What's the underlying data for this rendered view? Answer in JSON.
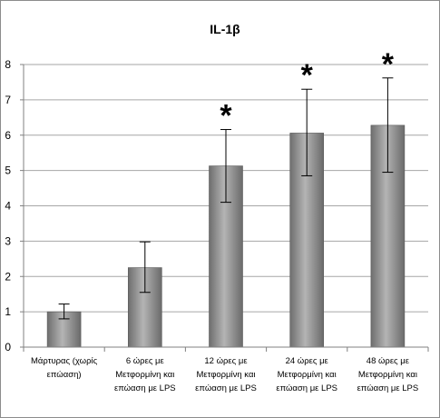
{
  "chart_data": {
    "type": "bar",
    "title": "IL-1β",
    "xlabel": "",
    "ylabel": "",
    "ylim": [
      0,
      8
    ],
    "yticks": [
      0,
      1,
      2,
      3,
      4,
      5,
      6,
      7,
      8
    ],
    "grid": true,
    "legend": "none",
    "categories": [
      [
        "Μάρτυρας (χωρίς",
        "επώαση)"
      ],
      [
        "6 ώρες με",
        "Μετφορμίνη και",
        "επώαση με LPS"
      ],
      [
        "12 ώρες με",
        "Μετφορμίνη και",
        "επώαση με LPS"
      ],
      [
        "24 ώρες με",
        "Μετφορμίνη και",
        "επώαση με LPS"
      ],
      [
        "48 ώρες με",
        "Μετφορμίνη και",
        "επώαση με LPS"
      ]
    ],
    "values": [
      1.0,
      2.25,
      5.13,
      6.06,
      6.28
    ],
    "error_low": [
      0.8,
      1.55,
      4.1,
      4.85,
      4.95
    ],
    "error_high": [
      1.22,
      2.98,
      6.16,
      7.3,
      7.62
    ],
    "significance": [
      "",
      "",
      "*",
      "*",
      "*"
    ],
    "bar_color": "#8c8c8c",
    "grid_color": "#a6a6a6"
  }
}
